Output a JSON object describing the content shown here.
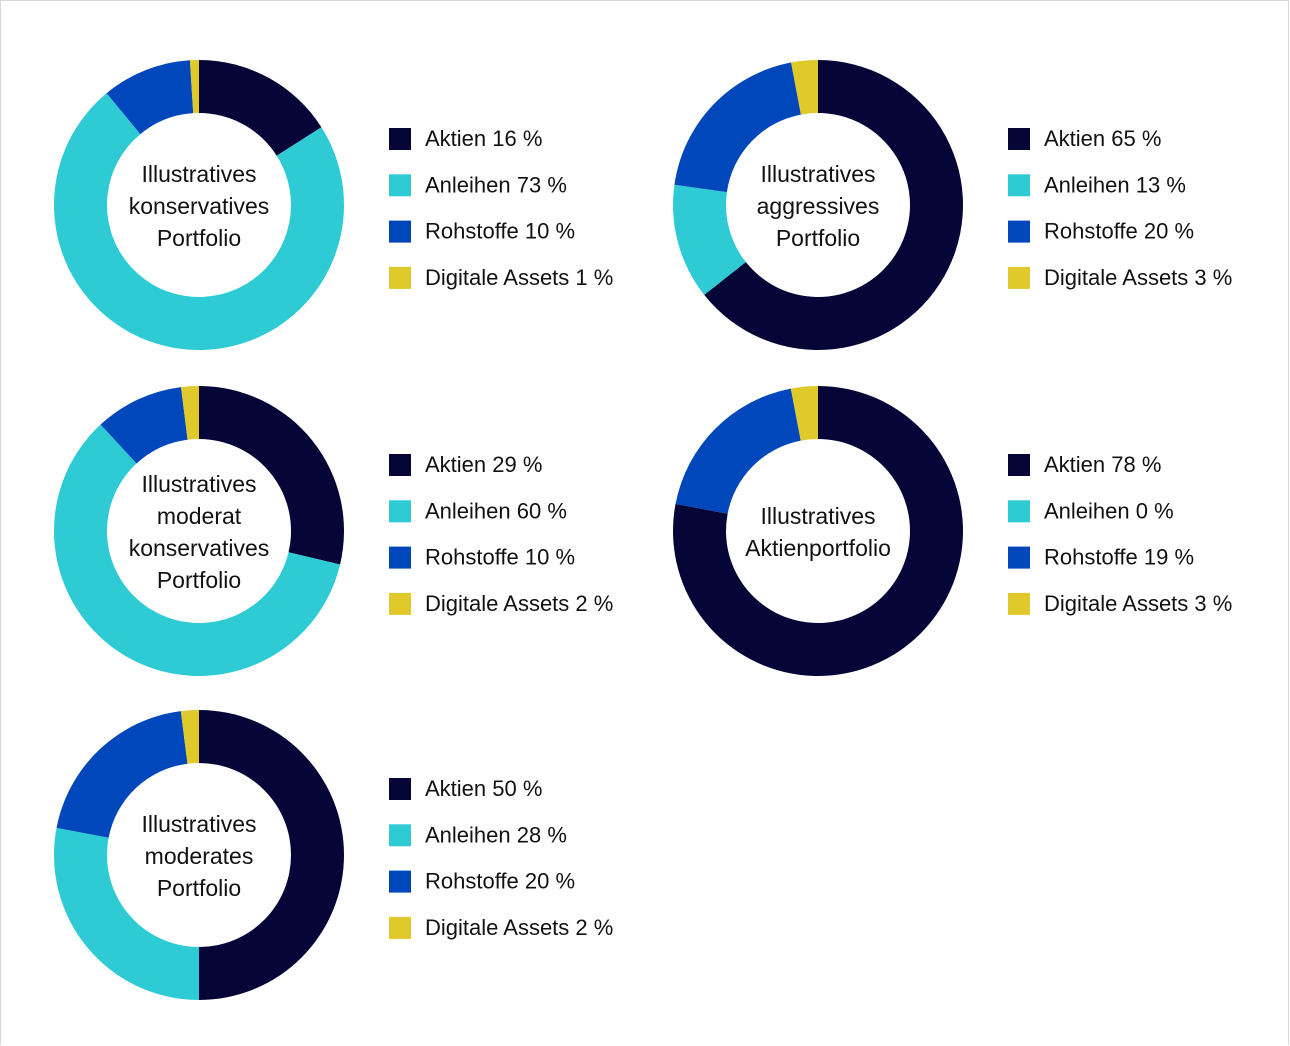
{
  "chart_data": [
    {
      "type": "pie",
      "title": "Illustratives konservatives Portfolio",
      "categories": [
        "Aktien",
        "Anleihen",
        "Rohstoffe",
        "Digitale Assets"
      ],
      "values": [
        16,
        73,
        10,
        1
      ],
      "value_labels": [
        "16 %",
        "73 %",
        "10 %",
        "1 %"
      ],
      "colors": [
        "#050537",
        "#2ecbd4",
        "#0047bb",
        "#e0c92a"
      ]
    },
    {
      "type": "pie",
      "title": "Illustratives aggressives Portfolio",
      "categories": [
        "Aktien",
        "Anleihen",
        "Rohstoffe",
        "Digitale Assets"
      ],
      "values": [
        65,
        13,
        20,
        3
      ],
      "value_labels": [
        "65 %",
        "13 %",
        "20 %",
        "3 %"
      ],
      "colors": [
        "#050537",
        "#2ecbd4",
        "#0047bb",
        "#e0c92a"
      ]
    },
    {
      "type": "pie",
      "title": "Illustratives moderat konservatives Portfolio",
      "categories": [
        "Aktien",
        "Anleihen",
        "Rohstoffe",
        "Digitale Assets"
      ],
      "values": [
        29,
        60,
        10,
        2
      ],
      "value_labels": [
        "29 %",
        "60 %",
        "10 %",
        "2 %"
      ],
      "colors": [
        "#050537",
        "#2ecbd4",
        "#0047bb",
        "#e0c92a"
      ]
    },
    {
      "type": "pie",
      "title": "Illustratives Aktienportfolio",
      "categories": [
        "Aktien",
        "Anleihen",
        "Rohstoffe",
        "Digitale Assets"
      ],
      "values": [
        78,
        0,
        19,
        3
      ],
      "value_labels": [
        "78 %",
        "0 %",
        "19 %",
        "3 %"
      ],
      "colors": [
        "#050537",
        "#2ecbd4",
        "#0047bb",
        "#e0c92a"
      ]
    },
    {
      "type": "pie",
      "title": "Illustratives moderates Portfolio",
      "categories": [
        "Aktien",
        "Anleihen",
        "Rohstoffe",
        "Digitale Assets"
      ],
      "values": [
        50,
        28,
        20,
        2
      ],
      "value_labels": [
        "50 %",
        "28 %",
        "20 %",
        "2 %"
      ],
      "colors": [
        "#050537",
        "#2ecbd4",
        "#0047bb",
        "#e0c92a"
      ]
    }
  ]
}
